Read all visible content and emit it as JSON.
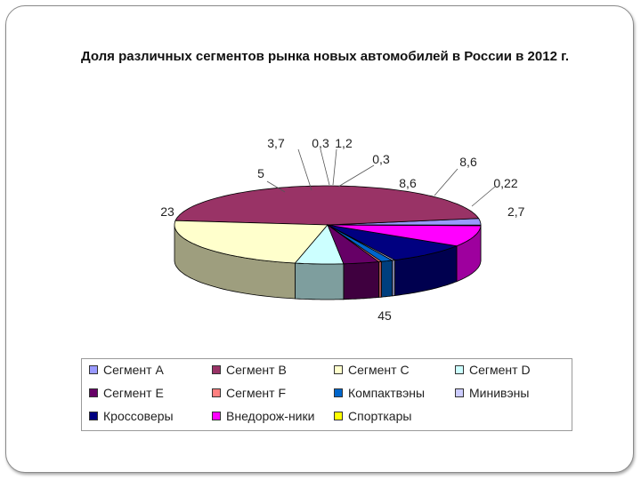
{
  "chart_data": {
    "type": "pie",
    "title": "Доля различных сегментов рынка новых автомобилей  в России в 2012 г.",
    "series": [
      {
        "name": "Сегмент A",
        "value": 2.7,
        "label": "2,7",
        "color": "#9999ff"
      },
      {
        "name": "Сегмент B",
        "value": 45,
        "label": "45",
        "color": "#993366"
      },
      {
        "name": "Сегмент C",
        "value": 23,
        "label": "23",
        "color": "#ffffcc"
      },
      {
        "name": "Сегмент D",
        "value": 5,
        "label": "5",
        "color": "#ccffff"
      },
      {
        "name": "Сегмент E",
        "value": 3.7,
        "label": "3,7",
        "color": "#660066"
      },
      {
        "name": "Сегмент F",
        "value": 0.3,
        "label": "0,3",
        "color": "#ff8080"
      },
      {
        "name": "Компактвэны",
        "value": 1.2,
        "label": "1,2",
        "color": "#0066cc"
      },
      {
        "name": "Минивэны",
        "value": 0.3,
        "label": "0,3",
        "color": "#ccccff"
      },
      {
        "name": "Кроссоверы",
        "value": 8.6,
        "label": "8,6",
        "color": "#000080"
      },
      {
        "name": "Внедорож-ники",
        "value": 8.6,
        "label": "8,6",
        "color": "#ff00ff"
      },
      {
        "name": "Спорткары",
        "value": 0.22,
        "label": "0,22",
        "color": "#ffff00"
      }
    ],
    "legend_position": "bottom",
    "style": "3d-pie"
  }
}
